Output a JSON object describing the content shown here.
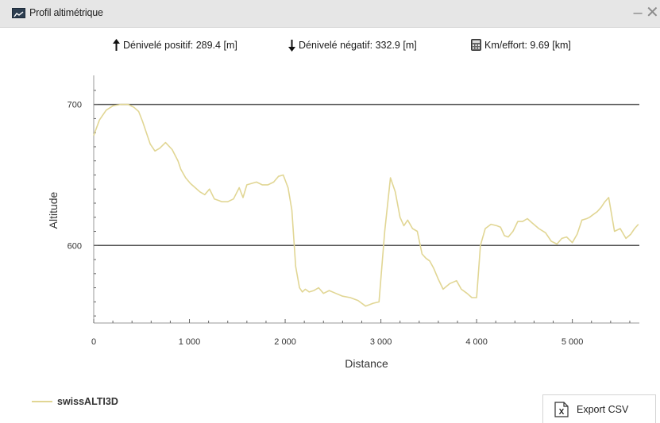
{
  "window": {
    "title": "Profil altimétrique",
    "minimize_label": "–",
    "close_label": "✕"
  },
  "stats": [
    {
      "icon": "arrow-up-icon",
      "label": "Dénivelé positif: 289.4 [m]"
    },
    {
      "icon": "arrow-down-icon",
      "label": "Dénivelé négatif: 332.9 [m]"
    },
    {
      "icon": "calculator-icon",
      "label": "Km/effort: 9.69 [km]"
    }
  ],
  "chart_data": {
    "type": "line",
    "xlabel": "Distance",
    "ylabel": "Altitude",
    "xlim": [
      0,
      5700
    ],
    "ylim": [
      545,
      715
    ],
    "x_ticks": [
      0,
      1000,
      2000,
      3000,
      4000,
      5000
    ],
    "x_tick_labels": [
      "0",
      "1 000",
      "2 000",
      "3 000",
      "4 000",
      "5 000"
    ],
    "y_ticks": [
      600,
      700
    ],
    "y_tick_labels": [
      "600",
      "700"
    ],
    "horizontal_lines": [
      600,
      700
    ],
    "series": [
      {
        "name": "swissALTI3D",
        "color": "#e1d694",
        "x": [
          0,
          60,
          130,
          200,
          280,
          360,
          420,
          470,
          510,
          550,
          590,
          640,
          690,
          750,
          820,
          880,
          910,
          960,
          1010,
          1060,
          1110,
          1160,
          1210,
          1260,
          1300,
          1340,
          1400,
          1460,
          1520,
          1560,
          1600,
          1650,
          1700,
          1760,
          1820,
          1880,
          1930,
          1980,
          2030,
          2070,
          2110,
          2150,
          2180,
          2210,
          2250,
          2300,
          2350,
          2400,
          2460,
          2530,
          2600,
          2680,
          2760,
          2840,
          2920,
          2980,
          3040,
          3100,
          3150,
          3200,
          3240,
          3280,
          3330,
          3380,
          3430,
          3470,
          3510,
          3550,
          3600,
          3650,
          3720,
          3790,
          3840,
          3900,
          3950,
          4000,
          4040,
          4090,
          4150,
          4210,
          4250,
          4290,
          4330,
          4380,
          4430,
          4480,
          4530,
          4580,
          4650,
          4720,
          4780,
          4840,
          4890,
          4940,
          5000,
          5050,
          5100,
          5150,
          5180,
          5220,
          5260,
          5300,
          5340,
          5380,
          5440,
          5500,
          5560,
          5610,
          5650,
          5690
        ],
        "y": [
          678,
          689,
          696,
          699,
          700,
          700,
          698,
          695,
          688,
          680,
          672,
          667,
          669,
          673,
          668,
          660,
          654,
          648,
          644,
          641,
          638,
          636,
          640,
          633,
          632,
          631,
          631,
          633,
          641,
          634,
          643,
          644,
          645,
          643,
          643,
          645,
          649,
          650,
          641,
          625,
          585,
          570,
          567,
          569,
          567,
          568,
          570,
          566,
          568,
          566,
          564,
          563,
          561,
          557,
          559,
          560,
          610,
          648,
          638,
          620,
          614,
          618,
          612,
          610,
          594,
          591,
          589,
          584,
          576,
          569,
          573,
          575,
          569,
          566,
          563,
          563,
          600,
          612,
          615,
          614,
          613,
          607,
          606,
          610,
          617,
          617,
          619,
          616,
          612,
          609,
          603,
          601,
          605,
          606,
          602,
          608,
          618,
          619,
          620,
          622,
          624,
          627,
          631,
          634,
          610,
          612,
          605,
          608,
          612,
          615
        ]
      }
    ]
  },
  "legend": {
    "label": "swissALTI3D"
  },
  "export": {
    "label": "Export CSV",
    "icon": "excel-file-icon"
  }
}
